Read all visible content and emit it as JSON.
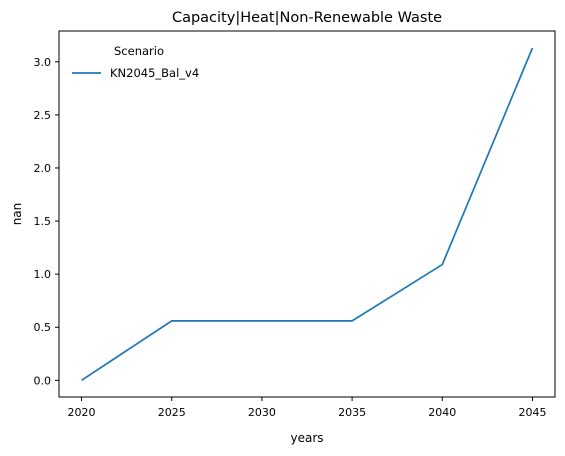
{
  "chart_data": {
    "type": "line",
    "title": "Capacity|Heat|Non-Renewable Waste",
    "xlabel": "years",
    "ylabel": "nan",
    "x": [
      2020,
      2025,
      2030,
      2035,
      2040,
      2045
    ],
    "xticks": [
      "2020",
      "2025",
      "2030",
      "2035",
      "2040",
      "2045"
    ],
    "yticks": [
      "0.0",
      "0.5",
      "1.0",
      "1.5",
      "2.0",
      "2.5",
      "3.0"
    ],
    "xlim": [
      2018.75,
      2046.25
    ],
    "ylim": [
      -0.157,
      3.29
    ],
    "grid": false,
    "legend": {
      "title": "Scenario",
      "placement": "top-left"
    },
    "series": [
      {
        "name": "KN2045_Bal_v4",
        "color": "#1f77b4",
        "values": [
          0.0,
          0.56,
          0.56,
          0.56,
          1.09,
          3.13
        ]
      }
    ]
  }
}
